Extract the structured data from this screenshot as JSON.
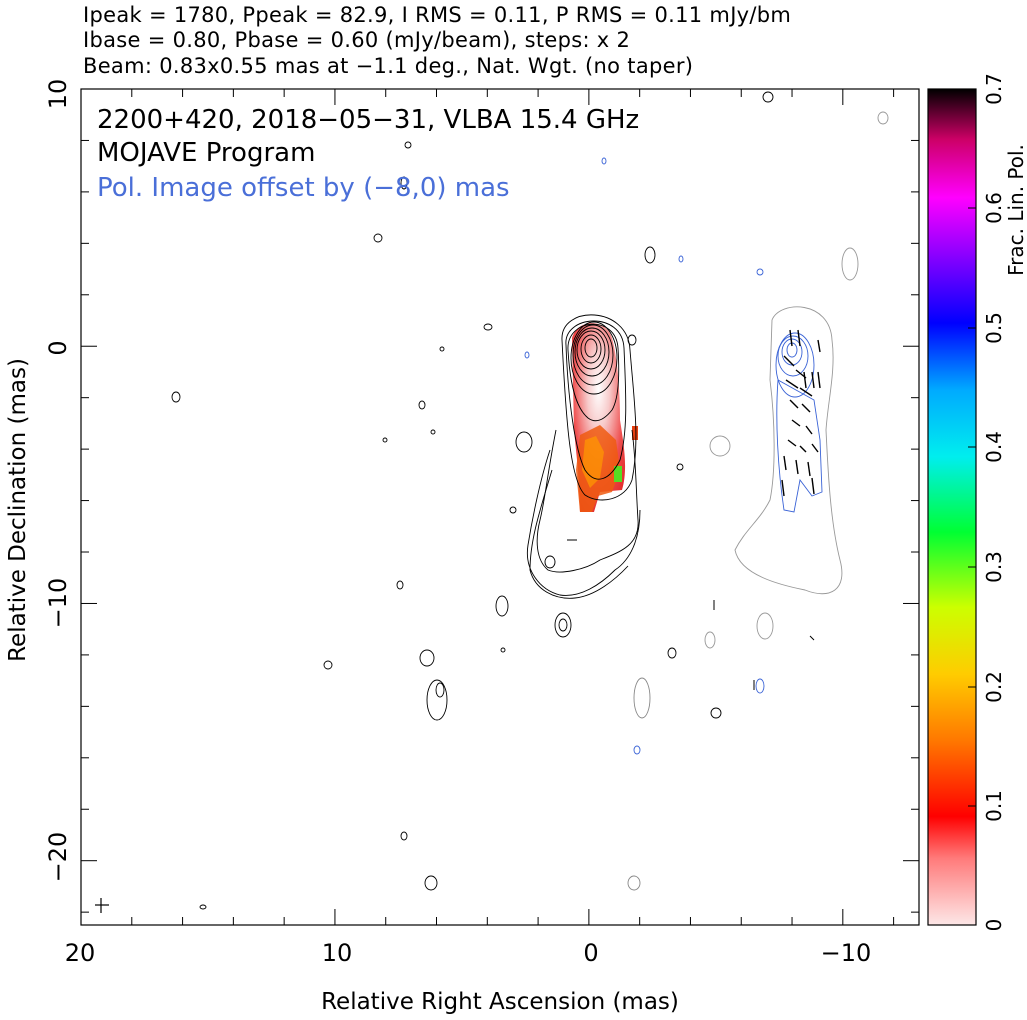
{
  "header": {
    "line1": "Ipeak = 1780, Ppeak = 82.9, I RMS = 0.11, P RMS = 0.11 mJy/bm",
    "line2": "Ibase = 0.80, Pbase = 0.60 (mJy/beam), steps: x 2",
    "line3": "Beam: 0.83x0.55 mas at −1.1 deg., Nat. Wgt. (no taper)"
  },
  "annotations": {
    "source_line": "2200+420, 2018−05−31, VLBA 15.4 GHz",
    "program_line": "MOJAVE Program",
    "offset_line": "Pol. Image offset by (−8,0) mas"
  },
  "axes": {
    "xlabel": "Relative Right Ascension (mas)",
    "ylabel": "Relative Declination (mas)",
    "x_ticks": [
      "20",
      "10",
      "0",
      "−10"
    ],
    "y_ticks": [
      "10",
      "0",
      "−10",
      "−20"
    ],
    "colorbar_label": "Frac. Lin. Pol.",
    "colorbar_ticks": [
      "0",
      "0.1",
      "0.2",
      "0.3",
      "0.4",
      "0.5",
      "0.6",
      "0.7"
    ]
  },
  "colors": {
    "stokes_i_contours": "#000000",
    "pol_contours": "#3a63d6",
    "offset_label": "#4a6fd8"
  },
  "chart_data": {
    "type": "contour-map",
    "xlim": [
      20,
      -13
    ],
    "ylim": [
      -22.5,
      10
    ],
    "colorbar_range": [
      0,
      0.7
    ],
    "core": {
      "x": 0,
      "y": 0
    },
    "pol_image_offset": [
      -8,
      0
    ]
  }
}
